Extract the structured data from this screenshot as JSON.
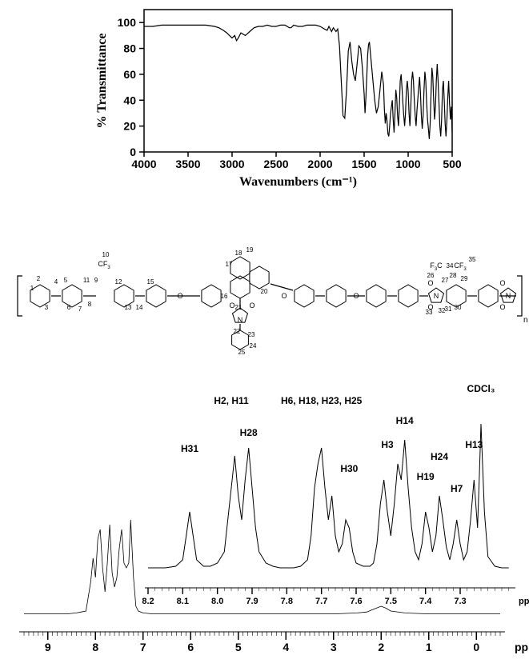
{
  "ir": {
    "type": "line",
    "title": "",
    "xlabel": "Wavenumbers (cm⁻¹)",
    "ylabel": "% Transmittance",
    "xlim": [
      4000,
      500
    ],
    "ylim": [
      0,
      110
    ],
    "xticks": [
      4000,
      3500,
      3000,
      2500,
      2000,
      1500,
      1000,
      500
    ],
    "yticks": [
      0,
      20,
      40,
      60,
      80,
      100
    ],
    "label_fontsize": 14,
    "tick_fontsize": 14,
    "line_color": "#000000",
    "line_width": 1.2,
    "background_color": "#ffffff",
    "series": {
      "x": [
        4000,
        3900,
        3800,
        3700,
        3600,
        3500,
        3400,
        3300,
        3200,
        3150,
        3100,
        3060,
        3030,
        3000,
        2970,
        2950,
        2930,
        2900,
        2850,
        2800,
        2750,
        2700,
        2650,
        2600,
        2550,
        2500,
        2450,
        2400,
        2350,
        2330,
        2300,
        2250,
        2200,
        2150,
        2100,
        2050,
        2000,
        1950,
        1920,
        1900,
        1870,
        1850,
        1820,
        1800,
        1780,
        1760,
        1740,
        1720,
        1700,
        1680,
        1660,
        1640,
        1620,
        1600,
        1580,
        1560,
        1540,
        1520,
        1500,
        1490,
        1480,
        1460,
        1450,
        1440,
        1420,
        1400,
        1380,
        1360,
        1340,
        1320,
        1300,
        1280,
        1270,
        1260,
        1250,
        1240,
        1230,
        1220,
        1210,
        1200,
        1180,
        1170,
        1160,
        1150,
        1140,
        1130,
        1120,
        1110,
        1100,
        1090,
        1080,
        1070,
        1060,
        1050,
        1040,
        1030,
        1020,
        1010,
        1000,
        990,
        980,
        970,
        960,
        950,
        940,
        930,
        920,
        910,
        900,
        880,
        870,
        860,
        850,
        840,
        830,
        820,
        810,
        800,
        790,
        780,
        770,
        760,
        750,
        740,
        730,
        720,
        710,
        700,
        690,
        680,
        670,
        660,
        650,
        640,
        630,
        620,
        610,
        600,
        590,
        580,
        570,
        560,
        550,
        540,
        530,
        520,
        510,
        500
      ],
      "y": [
        97,
        97,
        98,
        98,
        98,
        98,
        98,
        98,
        97,
        96,
        94,
        92,
        90,
        88,
        90,
        86,
        88,
        92,
        90,
        93,
        96,
        97,
        97,
        98,
        97,
        97,
        98,
        98,
        96,
        96,
        98,
        97,
        97,
        98,
        98,
        98,
        97,
        95,
        94,
        97,
        93,
        96,
        93,
        95,
        82,
        55,
        28,
        26,
        48,
        78,
        85,
        70,
        60,
        55,
        68,
        82,
        80,
        65,
        45,
        30,
        42,
        75,
        83,
        85,
        70,
        55,
        40,
        30,
        35,
        48,
        62,
        52,
        33,
        22,
        30,
        24,
        14,
        12,
        20,
        30,
        40,
        25,
        15,
        30,
        48,
        42,
        28,
        20,
        35,
        55,
        60,
        50,
        38,
        28,
        20,
        30,
        48,
        55,
        47,
        30,
        20,
        35,
        55,
        62,
        55,
        40,
        28,
        20,
        32,
        50,
        58,
        45,
        28,
        18,
        28,
        48,
        62,
        55,
        38,
        25,
        18,
        10,
        22,
        45,
        65,
        58,
        40,
        25,
        35,
        55,
        68,
        55,
        38,
        20,
        12,
        25,
        48,
        55,
        40,
        22,
        12,
        25,
        42,
        55,
        38,
        25,
        35,
        15
      ]
    }
  },
  "structure_numbers": [
    "1",
    "2",
    "3",
    "4",
    "5",
    "6",
    "7",
    "8",
    "9",
    "10",
    "11",
    "12",
    "13",
    "14",
    "15",
    "16",
    "17",
    "18",
    "19",
    "20",
    "21",
    "22",
    "23",
    "24",
    "25",
    "26",
    "27",
    "28",
    "29",
    "30",
    "31",
    "32",
    "33",
    "34",
    "35"
  ],
  "structure_groups": [
    "CF₃",
    "F₃C",
    "CF₃",
    "O",
    "O",
    "O",
    "O",
    "O",
    "O",
    "N",
    "N",
    "n"
  ],
  "nmr_inset": {
    "type": "line",
    "xlabel": "ppm",
    "xlim": [
      8.2,
      7.15
    ],
    "xticks": [
      8.2,
      8.1,
      8.0,
      7.9,
      7.8,
      7.7,
      7.6,
      7.5,
      7.4,
      7.3
    ],
    "line_color": "#000000",
    "line_width": 1.0,
    "peak_labels": [
      {
        "text": "H31",
        "ppm": 8.08
      },
      {
        "text": "H2, H11",
        "ppm": 7.96
      },
      {
        "text": "H28",
        "ppm": 7.91
      },
      {
        "text": "H6, H18, H23, H25",
        "ppm": 7.7
      },
      {
        "text": "H30",
        "ppm": 7.62
      },
      {
        "text": "H3",
        "ppm": 7.51
      },
      {
        "text": "H14",
        "ppm": 7.46
      },
      {
        "text": "H19",
        "ppm": 7.4
      },
      {
        "text": "H24",
        "ppm": 7.36
      },
      {
        "text": "H7",
        "ppm": 7.31
      },
      {
        "text": "H13",
        "ppm": 7.26
      },
      {
        "text": "CDCl₃",
        "ppm": 7.24
      }
    ],
    "series": {
      "x": [
        8.2,
        8.15,
        8.12,
        8.1,
        8.09,
        8.08,
        8.07,
        8.06,
        8.04,
        8.02,
        8.0,
        7.98,
        7.96,
        7.95,
        7.94,
        7.93,
        7.92,
        7.91,
        7.9,
        7.89,
        7.88,
        7.86,
        7.84,
        7.82,
        7.8,
        7.78,
        7.76,
        7.74,
        7.73,
        7.72,
        7.71,
        7.7,
        7.69,
        7.68,
        7.67,
        7.66,
        7.65,
        7.64,
        7.63,
        7.62,
        7.61,
        7.6,
        7.58,
        7.56,
        7.55,
        7.54,
        7.53,
        7.52,
        7.51,
        7.5,
        7.49,
        7.48,
        7.47,
        7.46,
        7.45,
        7.44,
        7.43,
        7.42,
        7.41,
        7.4,
        7.39,
        7.38,
        7.37,
        7.36,
        7.35,
        7.34,
        7.33,
        7.32,
        7.31,
        7.3,
        7.29,
        7.28,
        7.27,
        7.26,
        7.255,
        7.25,
        7.245,
        7.24,
        7.23,
        7.22,
        7.2,
        7.18,
        7.16
      ],
      "y": [
        5,
        5,
        6,
        10,
        25,
        40,
        25,
        10,
        6,
        6,
        8,
        15,
        55,
        75,
        50,
        35,
        60,
        80,
        55,
        30,
        15,
        8,
        6,
        5,
        5,
        5,
        6,
        10,
        25,
        55,
        70,
        80,
        55,
        35,
        50,
        25,
        15,
        20,
        35,
        30,
        15,
        8,
        6,
        6,
        8,
        20,
        45,
        60,
        40,
        25,
        45,
        70,
        60,
        85,
        55,
        30,
        15,
        10,
        20,
        40,
        30,
        15,
        25,
        50,
        35,
        18,
        10,
        20,
        35,
        20,
        10,
        15,
        35,
        60,
        45,
        30,
        60,
        95,
        40,
        12,
        6,
        5,
        5
      ]
    }
  },
  "nmr_full": {
    "type": "line",
    "xlabel": "ppm",
    "xlim": [
      9.5,
      -0.5
    ],
    "xticks": [
      9,
      8,
      7,
      6,
      5,
      4,
      3,
      2,
      1,
      0
    ],
    "line_color": "#000000",
    "line_width": 0.8,
    "series": {
      "x": [
        9.5,
        9.0,
        8.6,
        8.4,
        8.3,
        8.2,
        8.1,
        8.05,
        8.0,
        7.95,
        7.9,
        7.85,
        7.8,
        7.75,
        7.7,
        7.65,
        7.6,
        7.55,
        7.5,
        7.45,
        7.4,
        7.35,
        7.3,
        7.26,
        7.2,
        7.15,
        7.1,
        7.0,
        6.8,
        6.5,
        6.0,
        5.5,
        5.0,
        4.5,
        4.0,
        3.5,
        3.0,
        2.5,
        2.3,
        2.2,
        2.1,
        2.0,
        1.9,
        1.8,
        1.5,
        1.0,
        0.5,
        0.0,
        -0.5
      ],
      "y": [
        2,
        2,
        2,
        3,
        4,
        5,
        35,
        60,
        40,
        80,
        90,
        50,
        25,
        55,
        95,
        45,
        30,
        40,
        70,
        90,
        55,
        50,
        55,
        100,
        40,
        10,
        5,
        3,
        2,
        2,
        2,
        2,
        2,
        2,
        2,
        2,
        2,
        3,
        4,
        6,
        8,
        10,
        8,
        5,
        3,
        2,
        2,
        2,
        2
      ]
    }
  },
  "colors": {
    "axis": "#000000",
    "text": "#000000",
    "bg": "#ffffff"
  }
}
